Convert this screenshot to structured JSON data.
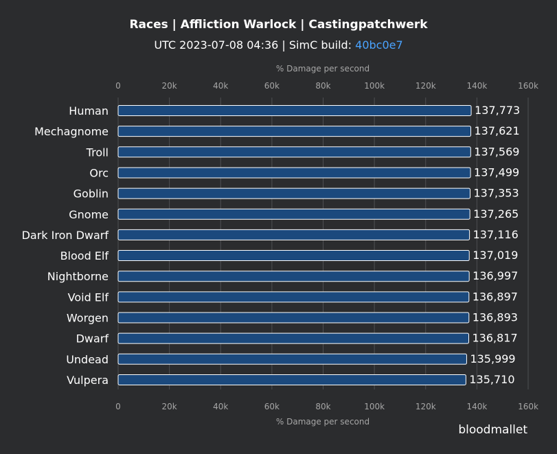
{
  "header": {
    "title": "Races | Affliction Warlock | Castingpatchwerk",
    "subtitle_prefix": "UTC 2023-07-08 04:36 | SimC build: ",
    "build_hash": "40bc0e7"
  },
  "brand": "bloodmallet",
  "colors": {
    "background": "#2b2c2e",
    "bar_fill": "#1b497d",
    "bar_stroke": "#ffffff",
    "grid": "#4e4f52",
    "axis_text": "#a6a6a6",
    "link": "#4aa3ff"
  },
  "chart_data": {
    "type": "bar",
    "orientation": "horizontal",
    "xlabel": "% Damage per second",
    "xlim": [
      0,
      160000
    ],
    "ticks": [
      "0",
      "20k",
      "40k",
      "60k",
      "80k",
      "100k",
      "120k",
      "140k",
      "160k"
    ],
    "tick_values": [
      0,
      20000,
      40000,
      60000,
      80000,
      100000,
      120000,
      140000,
      160000
    ],
    "categories": [
      "Human",
      "Mechagnome",
      "Troll",
      "Orc",
      "Goblin",
      "Gnome",
      "Dark Iron Dwarf",
      "Blood Elf",
      "Nightborne",
      "Void Elf",
      "Worgen",
      "Dwarf",
      "Undead",
      "Vulpera"
    ],
    "values": [
      137773,
      137621,
      137569,
      137499,
      137353,
      137265,
      137116,
      137019,
      136997,
      136897,
      136893,
      136817,
      135999,
      135710
    ],
    "value_labels": [
      "137,773",
      "137,621",
      "137,569",
      "137,499",
      "137,353",
      "137,265",
      "137,116",
      "137,019",
      "136,997",
      "136,897",
      "136,893",
      "136,817",
      "135,999",
      "135,710"
    ],
    "grid": true
  }
}
